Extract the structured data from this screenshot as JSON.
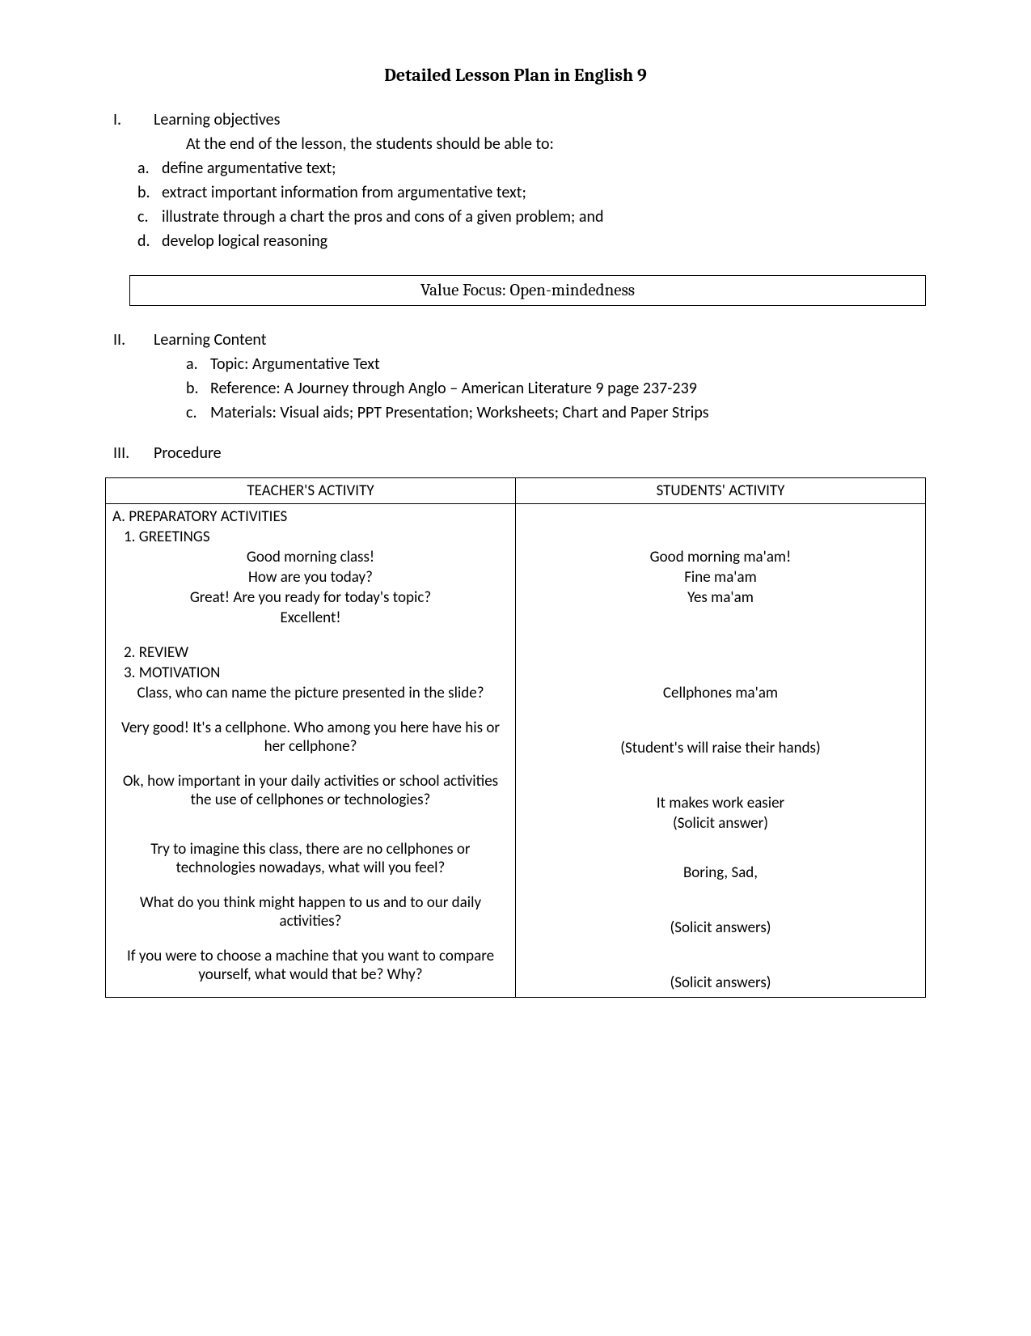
{
  "title": "Detailed Lesson Plan in English 9",
  "section1": {
    "num": "I.",
    "heading": "Learning objectives",
    "intro": "At the end of the lesson, the students should be able to:",
    "items": [
      {
        "letter": "a.",
        "text": "define argumentative text;"
      },
      {
        "letter": "b.",
        "text": "extract important information from argumentative text;"
      },
      {
        "letter": "c.",
        "text": "illustrate through a chart the pros and cons of a given problem; and"
      },
      {
        "letter": "d.",
        "text": "develop logical reasoning"
      }
    ]
  },
  "valueFocus": "Value Focus: Open-mindedness",
  "section2": {
    "num": "II.",
    "heading": "Learning Content",
    "items": [
      {
        "letter": "a.",
        "text": "Topic: Argumentative Text"
      },
      {
        "letter": "b.",
        "text": "Reference: A Journey through Anglo – American Literature 9 page 237-239"
      },
      {
        "letter": "c.",
        "text": "Materials:  Visual aids; PPT Presentation; Worksheets; Chart and Paper Strips"
      }
    ]
  },
  "section3": {
    "num": "III.",
    "heading": "Procedure"
  },
  "table": {
    "headers": [
      "TEACHER'S ACTIVITY",
      "STUDENTS' ACTIVITY"
    ],
    "prepHeading": "A. PREPARATORY ACTIVITIES",
    "greetingsHeading": "1. GREETINGS",
    "greetings": [
      {
        "t": "Good morning class!",
        "s": "Good morning ma'am!"
      },
      {
        "t": "How are you today?",
        "s": "Fine ma'am"
      },
      {
        "t": "Great! Are you ready for today's topic?",
        "s": "Yes ma'am"
      },
      {
        "t": "Excellent!",
        "s": ""
      }
    ],
    "reviewHeading": "2. REVIEW",
    "motivationHeading": "3. MOTIVATION",
    "motivation": [
      {
        "t": "Class, who can name the picture presented in the slide?",
        "s": "Cellphones ma'am"
      },
      {
        "t": "Very good! It's a cellphone. Who among you here have his or her cellphone?",
        "s": "(Student's will raise their hands)"
      },
      {
        "t": "Ok, how important in your daily activities or school activities the use of cellphones or technologies?",
        "s": "It makes work easier",
        "s2": "(Solicit answer)"
      },
      {
        "t": "Try to imagine this class, there are no cellphones or technologies nowadays, what will you feel?",
        "s": "Boring, Sad,"
      },
      {
        "t": "What do you think might happen to us and to our daily activities?",
        "s": "(Solicit answers)"
      },
      {
        "t": "If you were to choose a machine that you want to compare yourself, what would that be? Why?",
        "s": "(Solicit answers)"
      }
    ]
  }
}
